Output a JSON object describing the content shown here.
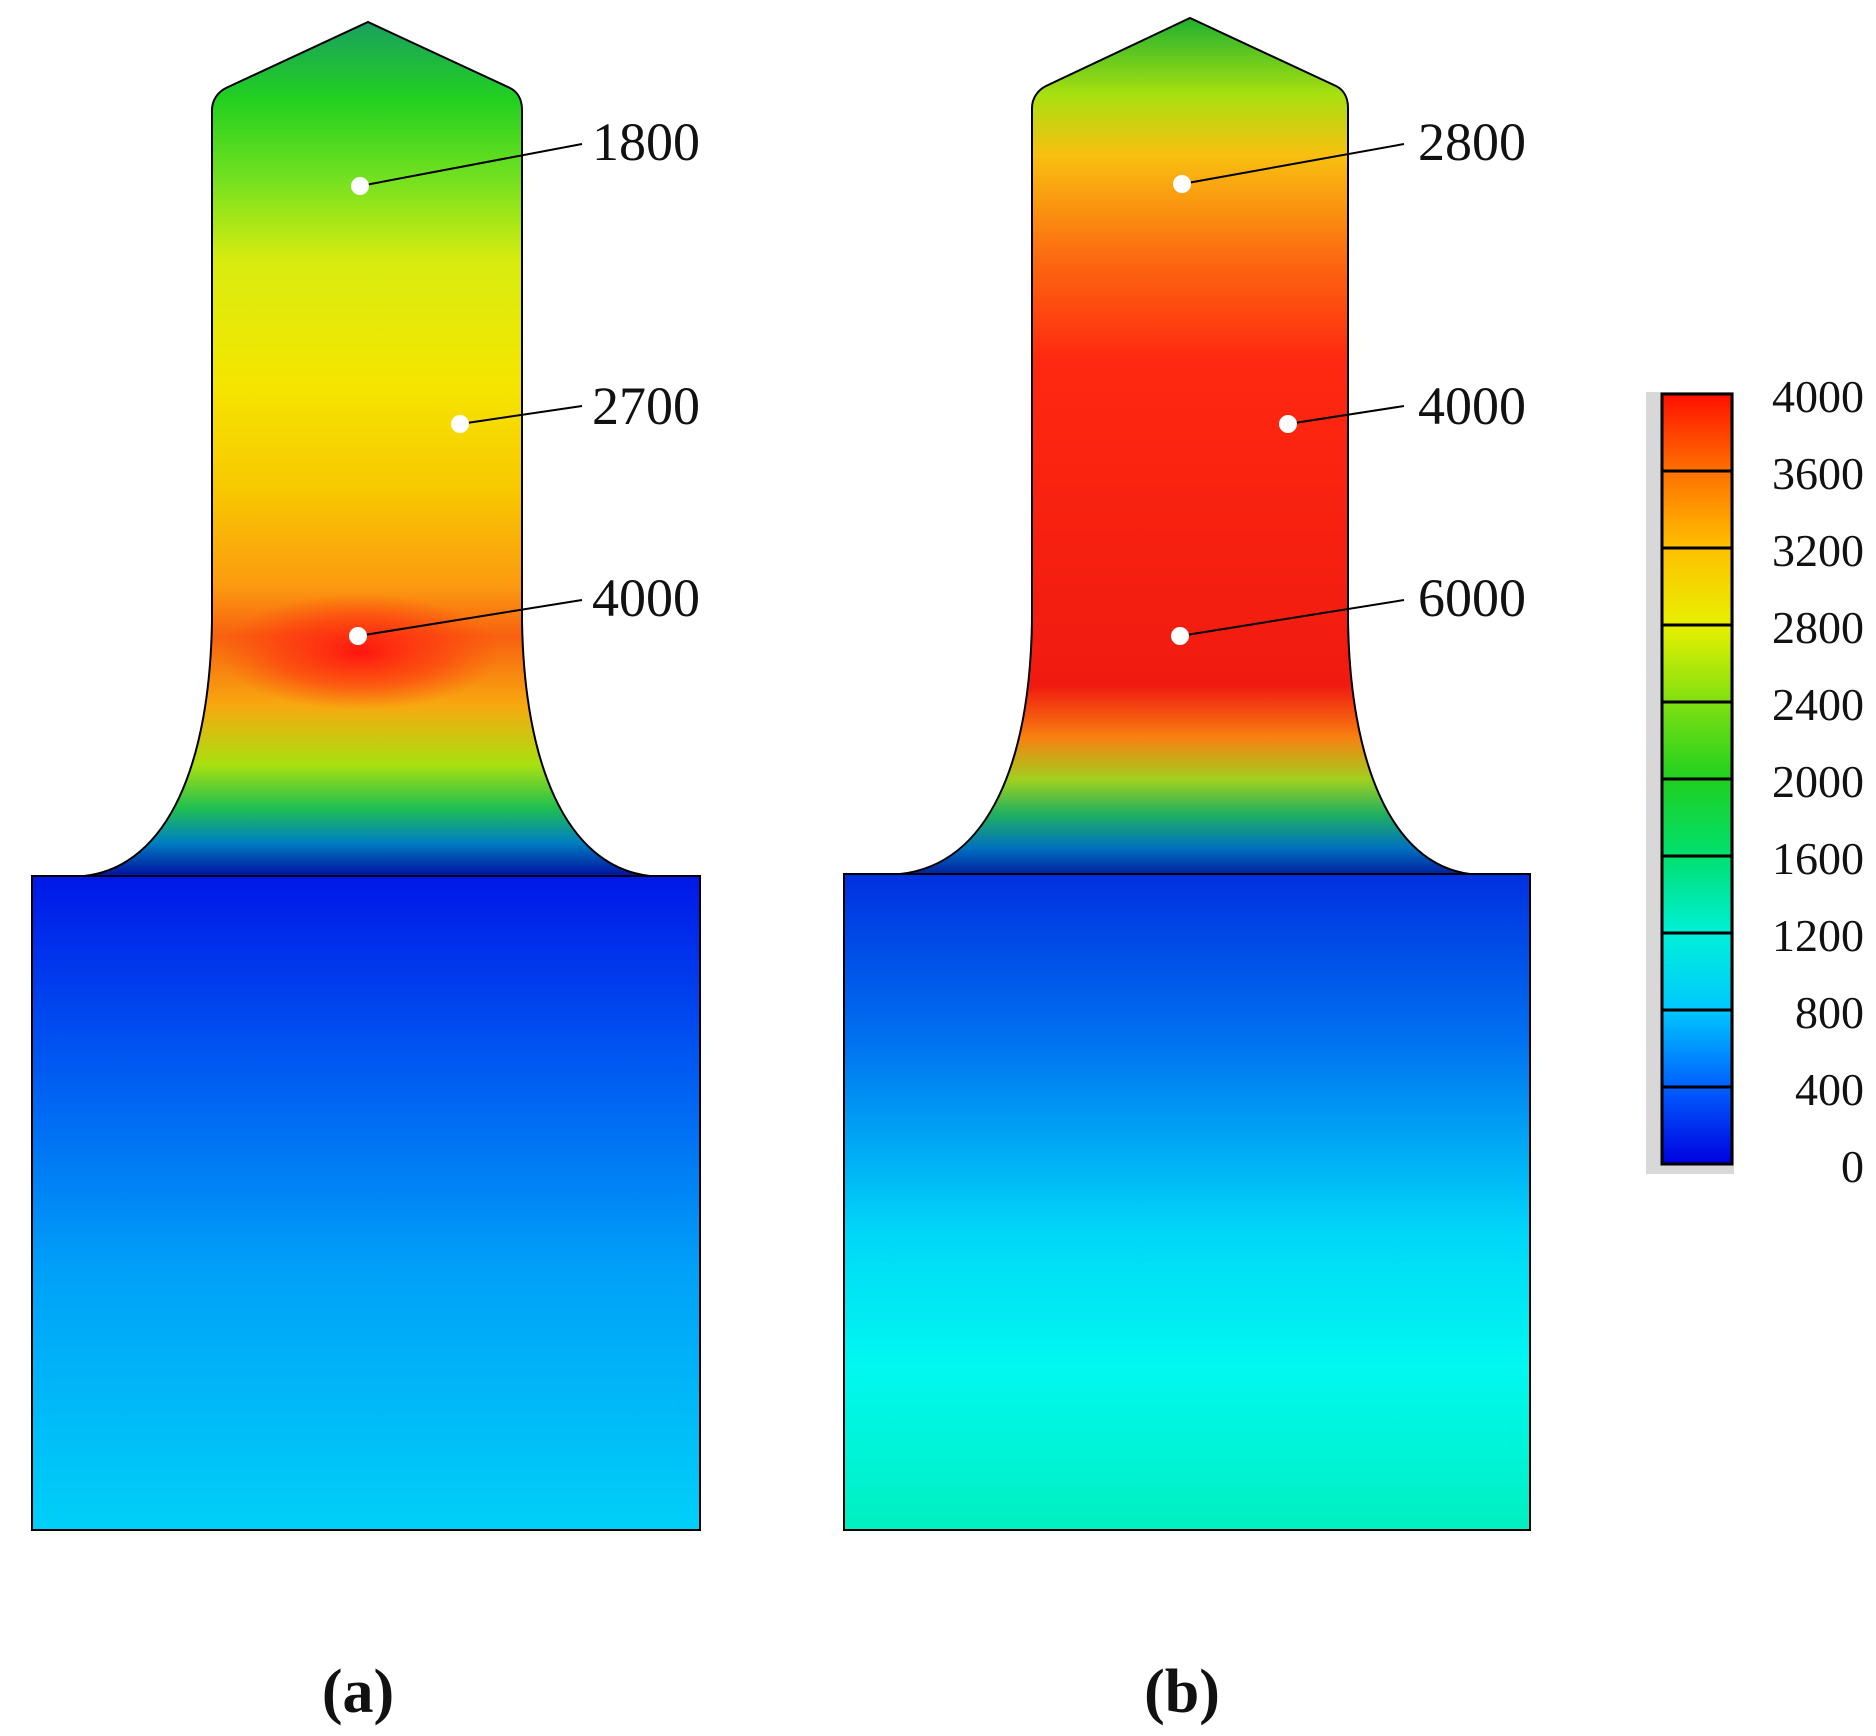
{
  "panels": [
    {
      "id": "a",
      "caption": "(a)",
      "callouts": [
        {
          "value": "1800",
          "shown_value": 1800
        },
        {
          "value": "2700",
          "shown_value": 2700
        },
        {
          "value": "4000",
          "shown_value": 4000
        }
      ]
    },
    {
      "id": "b",
      "caption": "(b)",
      "callouts": [
        {
          "value": "2800",
          "shown_value": 2800
        },
        {
          "value": "4000",
          "shown_value": 4000
        },
        {
          "value": "6000",
          "shown_value": 6000
        }
      ]
    }
  ],
  "colorbar": {
    "min": 0,
    "max": 4000,
    "ticks": [
      "4000",
      "3600",
      "3200",
      "2800",
      "2400",
      "2000",
      "1600",
      "1200",
      "800",
      "400",
      "0"
    ],
    "stops": [
      "#0000e0",
      "#0060ff",
      "#00c8ff",
      "#00f0d8",
      "#00e070",
      "#20d020",
      "#80e010",
      "#e8f000",
      "#ffc000",
      "#ff7000",
      "#ff1000"
    ]
  },
  "colors": {
    "outline": "#000000",
    "marker": "#ffffff",
    "leader": "#000000"
  }
}
